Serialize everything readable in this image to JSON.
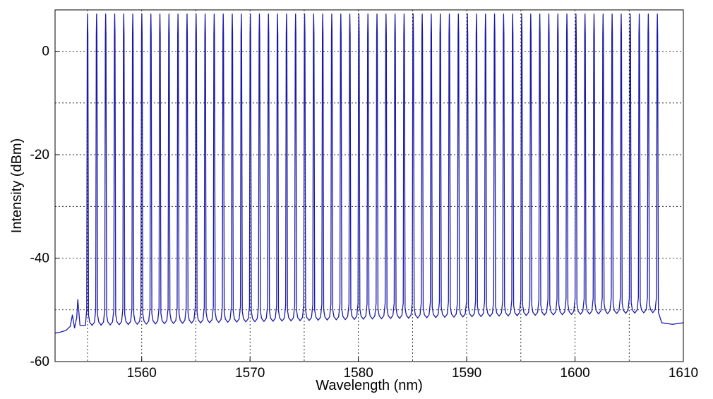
{
  "chart_data": {
    "type": "line",
    "title": "",
    "xlabel": "Wavelength (nm)",
    "ylabel": "Intensity (dBm)",
    "xlim": [
      1552,
      1610
    ],
    "ylim": [
      -60,
      8
    ],
    "xticks": [
      1560,
      1570,
      1580,
      1590,
      1600,
      1610
    ],
    "yticks": [
      -60,
      -40,
      -20,
      0
    ],
    "xtick_labels": [
      "1560",
      "1570",
      "1580",
      "1590",
      "1600",
      "1610"
    ],
    "ytick_labels": [
      "-60",
      "-40",
      "-20",
      "0"
    ],
    "grid": true,
    "grid_style": "dotted",
    "legend": "none",
    "line_color": "#1a1aa8",
    "series": [
      {
        "comb": {
          "first_peak_nm": 1555.0,
          "last_peak_nm": 1607.6,
          "num_peaks": 64,
          "peak_dbm": 7.2,
          "trough_dbm_start": -53.0,
          "trough_dbm_end": -50.5
        },
        "background": {
          "x": [
            1552.0,
            1552.5,
            1553.0,
            1553.4,
            1553.6,
            1553.8,
            1554.0,
            1554.1,
            1554.3,
            1554.6,
            1554.8,
            1607.7,
            1608.0,
            1609.0,
            1610.0
          ],
          "y": [
            -54.5,
            -54.3,
            -54.0,
            -53.2,
            -51.0,
            -53.5,
            -51.5,
            -48.0,
            -53.0,
            -53.0,
            -53.0,
            -50.5,
            -52.5,
            -52.8,
            -52.5
          ]
        }
      }
    ]
  }
}
